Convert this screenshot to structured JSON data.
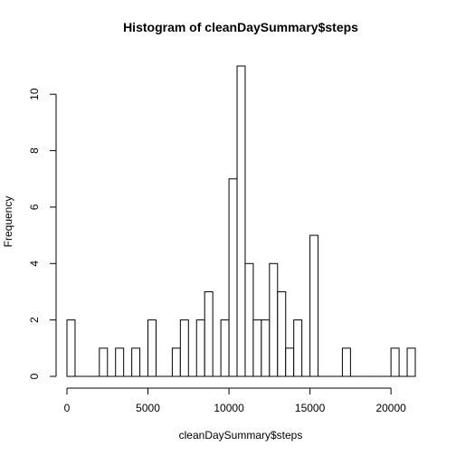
{
  "chart_data": {
    "type": "bar",
    "title": "Histogram of cleanDaySummary$steps",
    "xlabel": "cleanDaySummary$steps",
    "ylabel": "Frequency",
    "bin_width": 500,
    "bin_start": 0,
    "xlim": [
      0,
      21500
    ],
    "ylim": [
      0,
      11
    ],
    "x_ticks": [
      0,
      5000,
      10000,
      15000,
      20000
    ],
    "y_ticks": [
      0,
      2,
      4,
      6,
      8,
      10
    ],
    "x_tick_labels": [
      "0",
      "5000",
      "10000",
      "15000",
      "20000"
    ],
    "y_tick_labels": [
      "0",
      "2",
      "4",
      "6",
      "8",
      "10"
    ],
    "values": [
      2,
      0,
      0,
      0,
      1,
      0,
      1,
      0,
      1,
      0,
      2,
      0,
      0,
      1,
      2,
      0,
      2,
      3,
      0,
      2,
      7,
      11,
      4,
      2,
      2,
      4,
      3,
      1,
      2,
      0,
      5,
      0,
      0,
      0,
      1,
      0,
      0,
      0,
      0,
      0,
      1,
      0,
      1
    ],
    "grid": false,
    "legend": "none",
    "bar_fill": "#ffffff",
    "bar_stroke": "#000000"
  }
}
